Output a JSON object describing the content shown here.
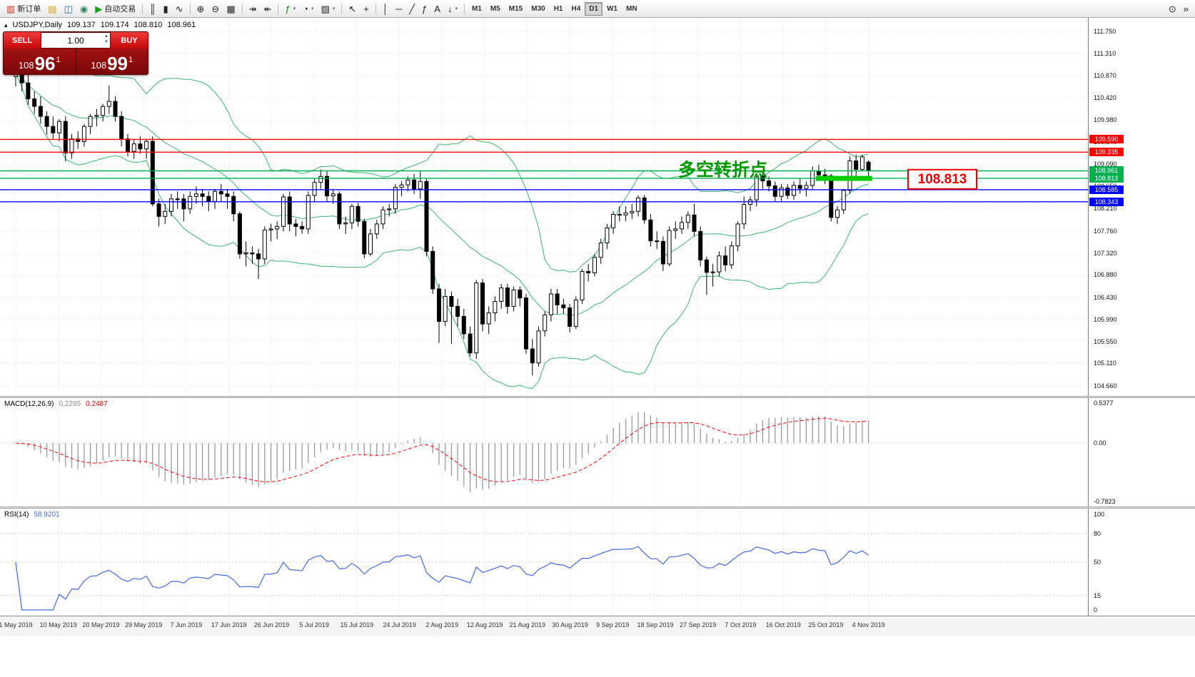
{
  "toolbar": {
    "groups": [
      {
        "items": [
          {
            "name": "new-order-button",
            "glyph": "▥",
            "glyph_color": "#c0392b",
            "label": "新订单"
          },
          {
            "name": "profiles-button",
            "glyph": "▤",
            "glyph_color": "#d4a017"
          },
          {
            "name": "charts-window-button",
            "glyph": "◫",
            "glyph_color": "#2e6da4"
          },
          {
            "name": "community-button",
            "glyph": "◉",
            "glyph_color": "#2e8b57"
          },
          {
            "name": "autotrading-button",
            "glyph": "▶",
            "glyph_color": "#18a018",
            "label": "自动交易"
          }
        ]
      },
      {
        "items": [
          {
            "name": "bar-chart-button",
            "glyph": "║"
          },
          {
            "name": "candlestick-chart-button",
            "glyph": "▮"
          },
          {
            "name": "line-chart-button",
            "glyph": "∿"
          }
        ]
      },
      {
        "items": [
          {
            "name": "zoom-in-button",
            "glyph": "⊕"
          },
          {
            "name": "zoom-out-button",
            "glyph": "⊖"
          },
          {
            "name": "tile-windows-button",
            "glyph": "▦"
          }
        ]
      },
      {
        "items": [
          {
            "name": "auto-scroll-button",
            "glyph": "↠"
          },
          {
            "name": "chart-shift-button",
            "glyph": "↞"
          }
        ]
      },
      {
        "items": [
          {
            "name": "indicators-button",
            "glyph": "ƒ",
            "glyph_color": "#1a7f1a",
            "dropdown": true
          },
          {
            "name": "periods-button",
            "glyph": "◔",
            "dropdown": true
          },
          {
            "name": "templates-button",
            "glyph": "▨",
            "dropdown": true
          }
        ]
      },
      {
        "items": [
          {
            "name": "cursor-button",
            "glyph": "↖"
          },
          {
            "name": "crosshair-button",
            "glyph": "+"
          }
        ]
      },
      {
        "items": [
          {
            "name": "vertical-line-button",
            "glyph": "│"
          },
          {
            "name": "horizontal-line-button",
            "glyph": "─"
          },
          {
            "name": "trendline-button",
            "glyph": "╱"
          },
          {
            "name": "fibonacci-button",
            "glyph": "ƒ"
          },
          {
            "name": "text-button",
            "glyph": "A"
          },
          {
            "name": "arrows-button",
            "glyph": "↓",
            "dropdown": true
          }
        ]
      }
    ],
    "timeframes": [
      "M1",
      "M5",
      "M15",
      "M30",
      "H1",
      "H4",
      "D1",
      "W1",
      "MN"
    ],
    "active_timeframe": "D1",
    "right_items": [
      {
        "name": "search-button",
        "glyph": "⊙"
      },
      {
        "name": "toolbar-overflow-button",
        "glyph": "»"
      }
    ]
  },
  "trade_panel": {
    "sell_label": "SELL",
    "buy_label": "BUY",
    "volume": "1.00",
    "volume_up_icon": "▲",
    "volume_down_icon": "▼",
    "sell_price": {
      "base": "108",
      "pips": "96",
      "frac": "1"
    },
    "buy_price": {
      "base": "108",
      "pips": "99",
      "frac": "1"
    }
  },
  "chart": {
    "collapse_icon": "▴",
    "symbol_label": "USDJPY,Daily",
    "ohlc": {
      "open": "109.137",
      "high": "109.174",
      "low": "108.810",
      "close": "108.961"
    },
    "annotation": {
      "text": "多空转折点",
      "color": "#009900"
    },
    "price_callout": {
      "text": "108.813",
      "color": "#ee0000"
    },
    "levels": [
      {
        "price": 109.59,
        "label": "109.590",
        "color": "#ff0000"
      },
      {
        "price": 109.335,
        "label": "109.335",
        "color": "#ff0000"
      },
      {
        "price": 108.961,
        "label": "108.961",
        "color": "#00b050"
      },
      {
        "price": 108.813,
        "label": "108.813",
        "color": "#00b050"
      },
      {
        "price": 108.585,
        "label": "108.585",
        "color": "#0000ff"
      },
      {
        "price": 108.343,
        "label": "108.343",
        "color": "#0000ff"
      }
    ],
    "highlight": {
      "price": 108.81,
      "from_index": 129,
      "to_index": 137,
      "color": "#00cc00"
    },
    "bollinger": {
      "period": 20,
      "deviation": 2,
      "color": "#3cb371"
    },
    "candle_up_color": "#ffffff",
    "candle_down_color": "#000000",
    "y_axis": [
      "111.750",
      "111.310",
      "110.870",
      "110.420",
      "109.980",
      "109.540",
      "109.090",
      "108.650",
      "108.210",
      "107.760",
      "107.320",
      "106.880",
      "106.430",
      "105.990",
      "105.550",
      "105.110",
      "104.660"
    ]
  },
  "macd": {
    "label": "MACD(12,26,9)",
    "value_main": "0.2295",
    "value_signal": "0.2487",
    "axis": [
      "0.5377",
      "0.00",
      "-0.7823"
    ],
    "histogram_color": "#999999",
    "signal_color": "#ff0000",
    "params": {
      "fast": 12,
      "slow": 26,
      "signal": 9
    }
  },
  "rsi": {
    "label": "RSI(14)",
    "value": "58.9201",
    "axis": [
      "100",
      "80",
      "50",
      "15",
      "0"
    ],
    "levels": [
      80,
      50,
      15
    ],
    "period": 14,
    "line_color": "#4169e1"
  },
  "chart_data": {
    "type": "candlestick",
    "symbol": "USDJPY",
    "timeframe": "Daily",
    "y_range": [
      104.46,
      112.02
    ],
    "x_labels": [
      "1 May 2019",
      "10 May 2019",
      "20 May 2019",
      "29 May 2019",
      "7 Jun 2019",
      "17 Jun 2019",
      "26 Jun 2019",
      "5 Jul 2019",
      "15 Jul 2019",
      "24 Jul 2019",
      "2 Aug 2019",
      "12 Aug 2019",
      "21 Aug 2019",
      "30 Aug 2019",
      "9 Sep 2019",
      "18 Sep 2019",
      "27 Sep 2019",
      "7 Oct 2019",
      "16 Oct 2019",
      "25 Oct 2019",
      "4 Nov 2019"
    ],
    "candles": [
      [
        110.85,
        111.05,
        110.65,
        110.9
      ],
      [
        110.9,
        111.0,
        110.55,
        110.72
      ],
      [
        110.72,
        110.9,
        110.28,
        110.4
      ],
      [
        110.4,
        110.55,
        110.1,
        110.25
      ],
      [
        110.25,
        110.45,
        109.9,
        110.05
      ],
      [
        110.05,
        110.15,
        109.68,
        109.85
      ],
      [
        109.85,
        110.05,
        109.6,
        109.72
      ],
      [
        109.72,
        110.0,
        109.55,
        109.95
      ],
      [
        109.95,
        110.05,
        109.15,
        109.32
      ],
      [
        109.32,
        109.7,
        109.2,
        109.6
      ],
      [
        109.6,
        109.75,
        109.4,
        109.55
      ],
      [
        109.55,
        109.9,
        109.45,
        109.85
      ],
      [
        109.85,
        110.1,
        109.7,
        110.05
      ],
      [
        110.05,
        110.2,
        109.85,
        110.07
      ],
      [
        110.07,
        110.3,
        109.95,
        110.25
      ],
      [
        110.25,
        110.67,
        110.1,
        110.35
      ],
      [
        110.35,
        110.45,
        109.95,
        110.05
      ],
      [
        110.05,
        110.15,
        109.45,
        109.6
      ],
      [
        109.6,
        109.7,
        109.25,
        109.35
      ],
      [
        109.35,
        109.6,
        109.2,
        109.5
      ],
      [
        109.5,
        109.65,
        109.3,
        109.4
      ],
      [
        109.4,
        109.6,
        109.2,
        109.55
      ],
      [
        109.55,
        109.65,
        108.25,
        108.3
      ],
      [
        108.3,
        108.4,
        107.85,
        108.05
      ],
      [
        108.05,
        108.3,
        107.9,
        108.15
      ],
      [
        108.15,
        108.5,
        108.05,
        108.4
      ],
      [
        108.4,
        108.55,
        108.2,
        108.4
      ],
      [
        108.4,
        108.5,
        107.95,
        108.2
      ],
      [
        108.2,
        108.55,
        108.1,
        108.45
      ],
      [
        108.45,
        108.65,
        108.3,
        108.5
      ],
      [
        108.5,
        108.6,
        108.25,
        108.45
      ],
      [
        108.45,
        108.55,
        108.15,
        108.35
      ],
      [
        108.35,
        108.6,
        108.2,
        108.55
      ],
      [
        108.55,
        108.7,
        108.35,
        108.5
      ],
      [
        108.5,
        108.6,
        108.2,
        108.45
      ],
      [
        108.45,
        108.55,
        107.95,
        108.1
      ],
      [
        108.1,
        108.15,
        107.2,
        107.3
      ],
      [
        107.3,
        107.55,
        107.05,
        107.32
      ],
      [
        107.32,
        107.45,
        107.1,
        107.3
      ],
      [
        107.3,
        107.4,
        106.8,
        107.2
      ],
      [
        107.2,
        107.85,
        107.1,
        107.78
      ],
      [
        107.78,
        107.9,
        107.55,
        107.8
      ],
      [
        107.8,
        107.95,
        107.6,
        107.85
      ],
      [
        107.85,
        108.5,
        107.75,
        108.44
      ],
      [
        108.44,
        108.55,
        107.75,
        107.9
      ],
      [
        107.9,
        108.0,
        107.65,
        107.85
      ],
      [
        107.85,
        107.95,
        107.7,
        107.8
      ],
      [
        107.8,
        108.55,
        107.7,
        108.47
      ],
      [
        108.47,
        108.8,
        108.35,
        108.73
      ],
      [
        108.73,
        108.99,
        108.6,
        108.85
      ],
      [
        108.85,
        108.95,
        108.35,
        108.46
      ],
      [
        108.46,
        108.6,
        108.3,
        108.5
      ],
      [
        108.5,
        108.55,
        107.8,
        107.9
      ],
      [
        107.9,
        108.05,
        107.7,
        107.92
      ],
      [
        107.92,
        108.3,
        107.8,
        108.25
      ],
      [
        108.25,
        108.32,
        107.85,
        107.95
      ],
      [
        107.95,
        108.0,
        107.21,
        107.3
      ],
      [
        107.3,
        107.8,
        107.25,
        107.7
      ],
      [
        107.7,
        107.98,
        107.6,
        107.9
      ],
      [
        107.9,
        108.25,
        107.8,
        108.18
      ],
      [
        108.18,
        108.3,
        108.05,
        108.2
      ],
      [
        108.2,
        108.7,
        108.1,
        108.63
      ],
      [
        108.63,
        108.75,
        108.45,
        108.68
      ],
      [
        108.68,
        108.85,
        108.55,
        108.78
      ],
      [
        108.78,
        108.9,
        108.5,
        108.6
      ],
      [
        108.6,
        108.95,
        108.4,
        108.75
      ],
      [
        108.75,
        108.8,
        107.25,
        107.35
      ],
      [
        107.35,
        107.45,
        106.5,
        106.6
      ],
      [
        106.6,
        106.7,
        105.52,
        105.95
      ],
      [
        105.95,
        106.6,
        105.85,
        106.45
      ],
      [
        106.45,
        106.55,
        105.5,
        106.25
      ],
      [
        106.25,
        106.4,
        105.85,
        106.05
      ],
      [
        106.05,
        106.2,
        105.6,
        105.7
      ],
      [
        105.7,
        105.85,
        105.25,
        105.32
      ],
      [
        105.32,
        106.78,
        105.2,
        106.72
      ],
      [
        106.72,
        106.8,
        105.75,
        105.9
      ],
      [
        105.9,
        106.25,
        105.7,
        106.12
      ],
      [
        106.12,
        106.45,
        105.95,
        106.35
      ],
      [
        106.35,
        106.7,
        106.2,
        106.62
      ],
      [
        106.62,
        106.7,
        106.1,
        106.25
      ],
      [
        106.25,
        106.65,
        106.15,
        106.58
      ],
      [
        106.58,
        106.65,
        106.25,
        106.42
      ],
      [
        106.42,
        106.5,
        105.3,
        105.4
      ],
      [
        105.4,
        105.6,
        104.87,
        105.12
      ],
      [
        105.12,
        105.85,
        105.05,
        105.76
      ],
      [
        105.76,
        106.15,
        105.65,
        106.08
      ],
      [
        106.08,
        106.6,
        105.95,
        106.5
      ],
      [
        106.5,
        106.6,
        106.1,
        106.28
      ],
      [
        106.28,
        106.4,
        106.1,
        106.22
      ],
      [
        106.22,
        106.3,
        105.73,
        105.85
      ],
      [
        105.85,
        106.45,
        105.8,
        106.38
      ],
      [
        106.38,
        107.0,
        106.3,
        106.95
      ],
      [
        106.95,
        107.1,
        106.75,
        106.92
      ],
      [
        106.92,
        107.3,
        106.85,
        107.23
      ],
      [
        107.23,
        107.6,
        107.1,
        107.52
      ],
      [
        107.52,
        107.9,
        107.4,
        107.82
      ],
      [
        107.82,
        108.15,
        107.7,
        108.09
      ],
      [
        108.09,
        108.25,
        107.95,
        108.08
      ],
      [
        108.08,
        108.25,
        107.95,
        108.12
      ],
      [
        108.12,
        108.3,
        108.0,
        108.15
      ],
      [
        108.15,
        108.47,
        108.05,
        108.42
      ],
      [
        108.42,
        108.48,
        107.9,
        107.98
      ],
      [
        107.98,
        108.1,
        107.45,
        107.56
      ],
      [
        107.56,
        107.75,
        107.4,
        107.55
      ],
      [
        107.55,
        107.65,
        106.96,
        107.1
      ],
      [
        107.1,
        107.85,
        107.05,
        107.77
      ],
      [
        107.77,
        107.95,
        107.6,
        107.8
      ],
      [
        107.8,
        108.05,
        107.7,
        107.93
      ],
      [
        107.93,
        108.15,
        107.8,
        108.08
      ],
      [
        108.08,
        108.3,
        107.65,
        107.75
      ],
      [
        107.75,
        107.85,
        107.05,
        107.18
      ],
      [
        107.18,
        107.25,
        106.48,
        106.93
      ],
      [
        106.93,
        107.1,
        106.65,
        106.94
      ],
      [
        106.94,
        107.35,
        106.85,
        107.26
      ],
      [
        107.26,
        107.45,
        106.95,
        107.08
      ],
      [
        107.08,
        107.55,
        107.0,
        107.46
      ],
      [
        107.46,
        107.95,
        107.35,
        107.9
      ],
      [
        107.9,
        108.45,
        107.8,
        108.29
      ],
      [
        108.29,
        108.45,
        108.15,
        108.38
      ],
      [
        108.38,
        108.9,
        108.25,
        108.86
      ],
      [
        108.86,
        108.95,
        108.6,
        108.76
      ],
      [
        108.76,
        108.85,
        108.55,
        108.66
      ],
      [
        108.66,
        108.75,
        108.35,
        108.45
      ],
      [
        108.45,
        108.7,
        108.35,
        108.62
      ],
      [
        108.62,
        108.7,
        108.4,
        108.47
      ],
      [
        108.47,
        108.75,
        108.38,
        108.67
      ],
      [
        108.67,
        108.8,
        108.5,
        108.61
      ],
      [
        108.61,
        108.75,
        108.45,
        108.67
      ],
      [
        108.67,
        109.05,
        108.6,
        108.96
      ],
      [
        108.96,
        109.08,
        108.78,
        108.88
      ],
      [
        108.88,
        109.0,
        108.7,
        108.86
      ],
      [
        108.86,
        108.9,
        107.95,
        108.03
      ],
      [
        108.03,
        108.25,
        107.9,
        108.18
      ],
      [
        108.18,
        108.6,
        108.1,
        108.57
      ],
      [
        108.57,
        109.25,
        108.5,
        109.16
      ],
      [
        109.16,
        109.29,
        108.85,
        108.99
      ],
      [
        108.99,
        109.28,
        108.95,
        109.24
      ],
      [
        109.137,
        109.174,
        108.81,
        108.961
      ]
    ]
  }
}
